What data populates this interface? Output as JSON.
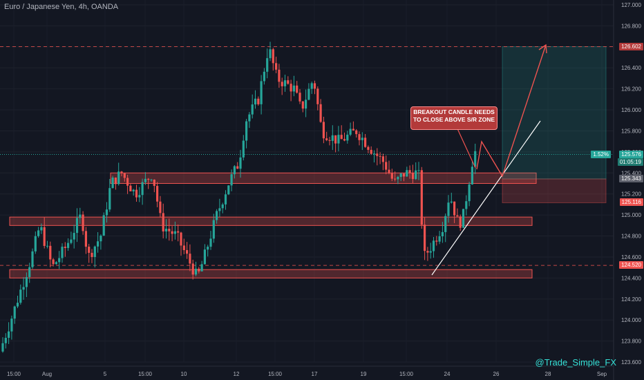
{
  "chart_data": {
    "type": "candlestick",
    "title": "Euro / Japanese Yen, 4h, OANDA",
    "ylim": [
      123.6,
      127.0
    ],
    "y_ticks": [
      "127.000",
      "126.800",
      "126.600",
      "126.400",
      "126.200",
      "126.000",
      "125.800",
      "125.600",
      "125.400",
      "125.200",
      "125.000",
      "124.800",
      "124.600",
      "124.400",
      "124.200",
      "124.000",
      "123.800",
      "123.600"
    ],
    "x_ticks": [
      "15:00",
      "Aug",
      "5",
      "15:00",
      "10",
      "12",
      "15:00",
      "17",
      "19",
      "15:00",
      "24",
      "26",
      "28",
      "Sep"
    ],
    "price_labels": {
      "target": "126.602",
      "current": "125.576",
      "current_pct": "1.52%",
      "countdown": "01:05:19",
      "zone": "125.343",
      "stop": "125.116",
      "low_level": "124.520"
    },
    "zones": [
      {
        "name": "upper-sr-zone",
        "low": 125.3,
        "high": 125.4
      },
      {
        "name": "middle-sr-zone",
        "low": 124.9,
        "high": 124.98
      },
      {
        "name": "lower-sr-zone",
        "low": 124.4,
        "high": 124.48
      }
    ],
    "horizontal_levels": [
      126.602,
      124.52
    ],
    "position": {
      "entry": 125.343,
      "target": 126.602,
      "stop": 125.116
    },
    "annotation": "BREAKOUT CANDLE NEEDS TO CLOSE ABOVE S/R ZONE",
    "watermark": "@Trade_Simple_FX",
    "colors": {
      "up": "#26a69a",
      "down": "#ef5350",
      "bg": "#131722",
      "grid": "#1e222d"
    }
  }
}
